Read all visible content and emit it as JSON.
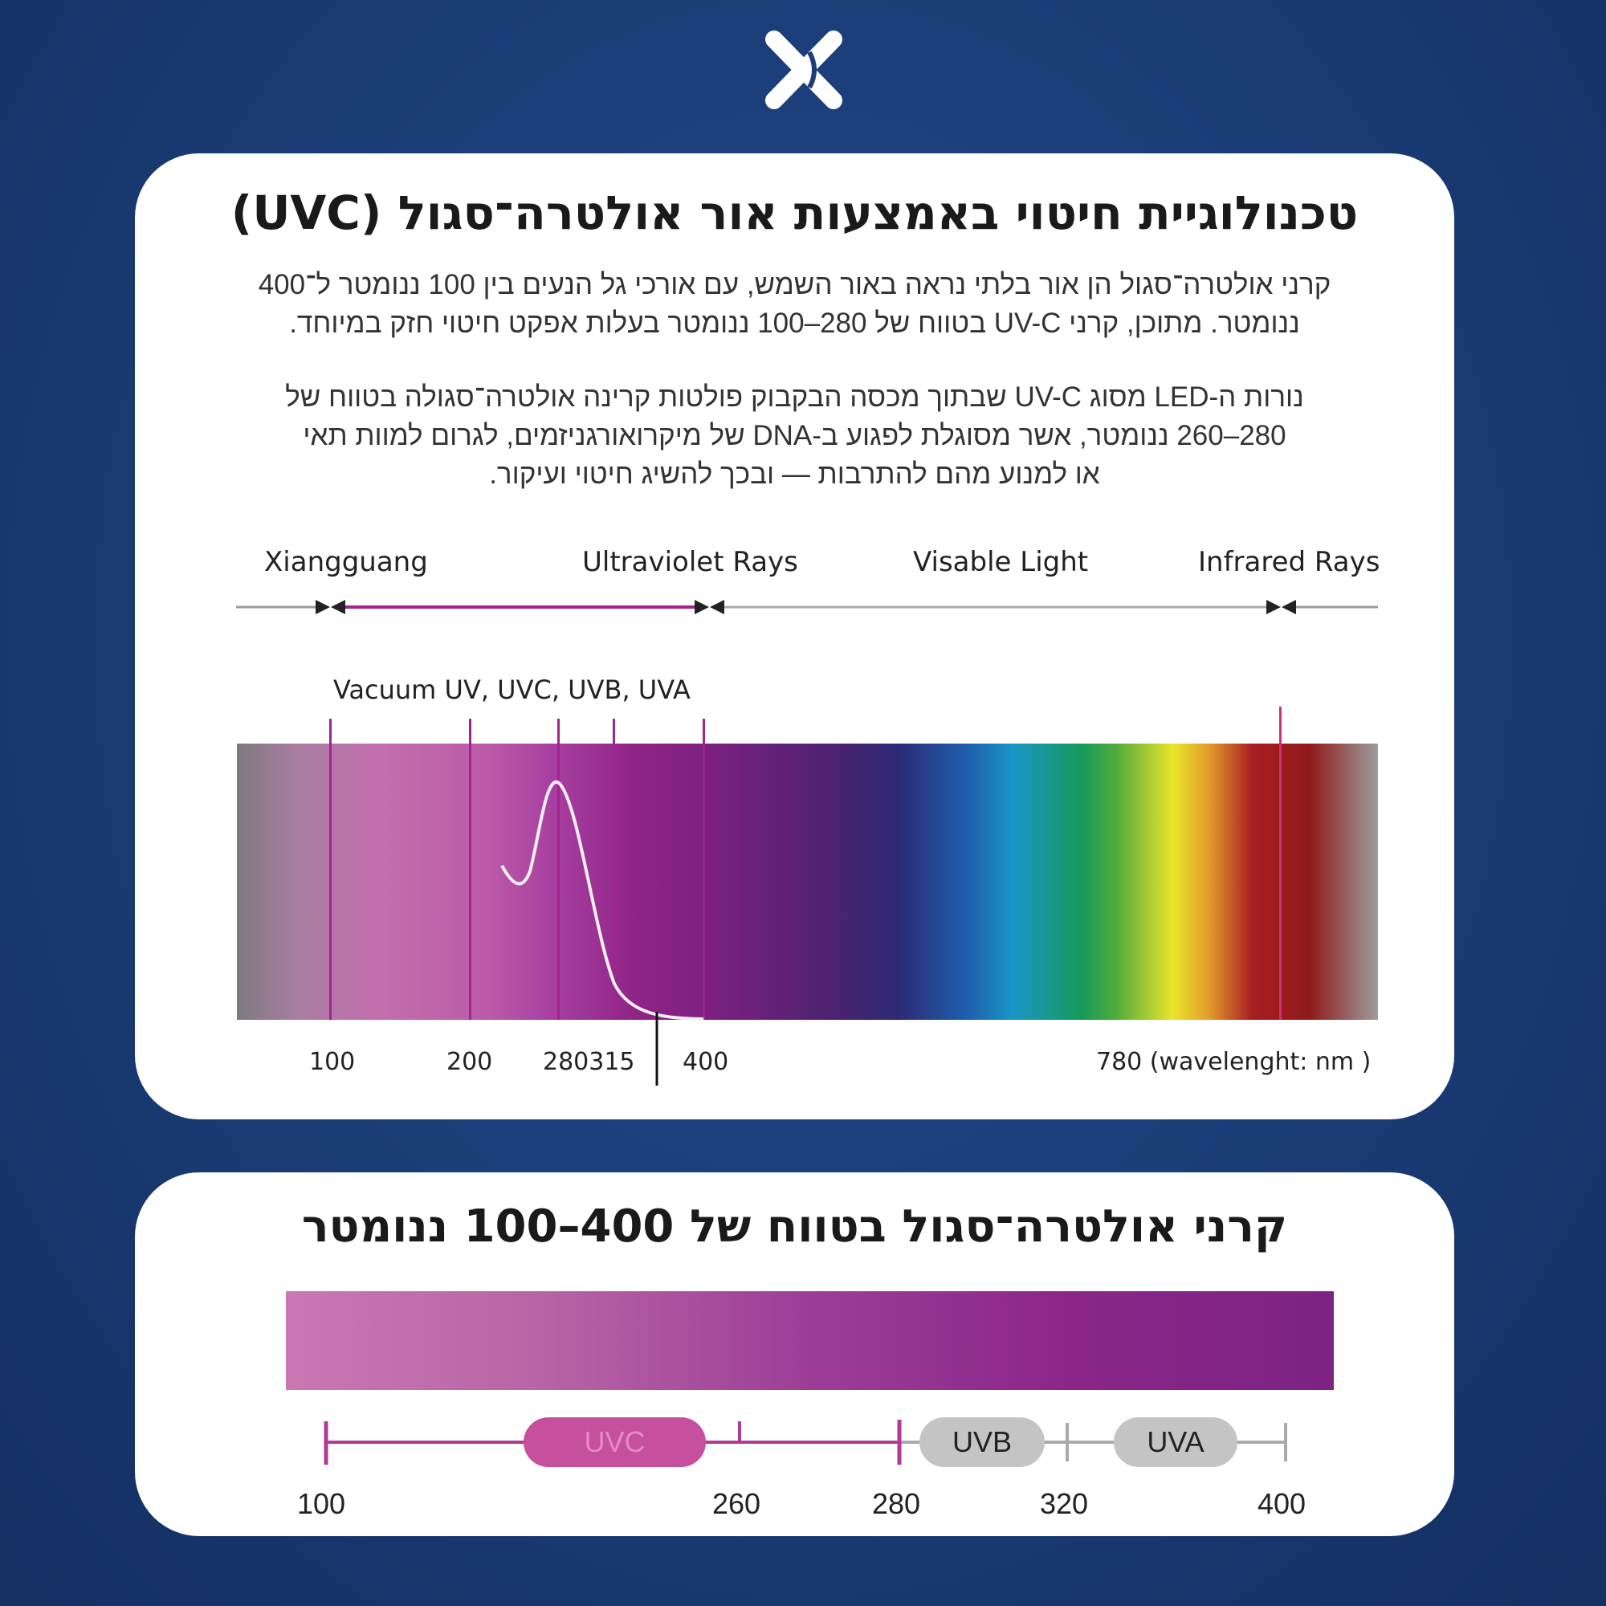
{
  "logo": {
    "icon": "xiangguang-x-logo",
    "color": "#ffffff"
  },
  "card1": {
    "title": "טכנולוגיית חיטוי באמצעות אור אולטרה־סגול (UVC)",
    "paragraph1": [
      "קרני אולטרה־סגול הן אור בלתי נראה באור השמש, עם אורכי גל הנעים בין 100 ננומטר ל־400",
      "ננומטר. מתוכן, קרני UV-C בטווח של 280–100 ננומטר בעלות אפקט חיטוי חזק במיוחד."
    ],
    "paragraph2": [
      "נורות ה-LED מסוג UV-C שבתוך מכסה הבקבוק פולטות קרינה אולטרה־סגולה בטווח של",
      "280–260 ננומטר, אשר מסוגלת לפגוע ב-DNA של מיקרואורגניזמים, לגרום למוות תאי",
      "או למנוע מהם להתרבות — ובכך להשיג חיטוי ועיקור."
    ],
    "spectrum": {
      "band_labels": [
        "Xiangguang",
        "Ultraviolet Rays",
        "Visable Light",
        "Infrared Rays"
      ],
      "uv_sublabel": "Vacuum UV, UVC, UVB, UVA",
      "tick_labels": [
        "100",
        "200",
        "280315",
        "400",
        "780 (wavelenght: nm )"
      ],
      "ticks_nm": [
        100,
        200,
        280,
        315,
        400,
        780
      ],
      "accent": "#a0238f"
    }
  },
  "card2": {
    "title": "קרני אולטרה־סגול בטווח של 400–100 ננומטר",
    "bands": [
      {
        "label": "UVC",
        "color": "#c64f9e"
      },
      {
        "label": "UVB",
        "color": "#c4c4c4"
      },
      {
        "label": "UVA",
        "color": "#c4c4c4"
      }
    ],
    "scale_labels": [
      "100",
      "260",
      "280",
      "320",
      "400"
    ]
  }
}
